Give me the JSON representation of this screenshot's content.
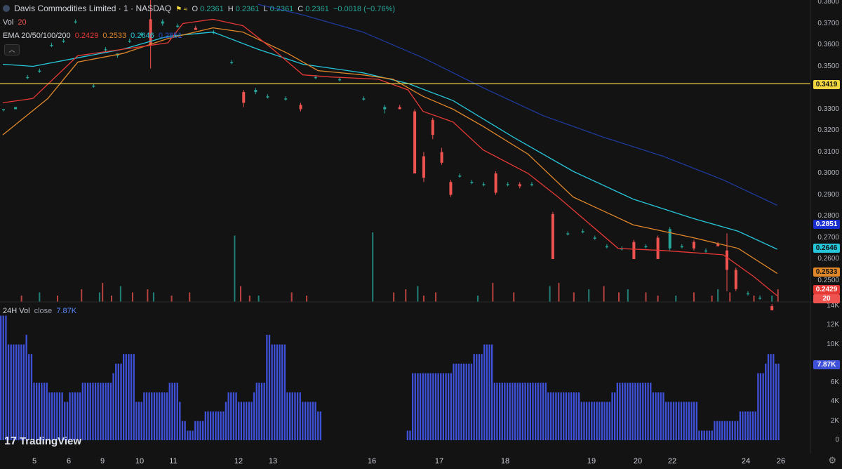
{
  "header": {
    "symbol": "Davis Commodities Limited · 1 · NASDAQ",
    "ohlc": {
      "o_label": "O",
      "o": "0.2361",
      "h_label": "H",
      "h": "0.2361",
      "l_label": "L",
      "l": "0.2361",
      "c_label": "C",
      "c": "0.2361",
      "change": "−0.0018 (−0.76%)"
    },
    "vol_label": "Vol",
    "vol_value": "20",
    "ema_label": "EMA 20/50/100/200",
    "ema_values": [
      "0.2429",
      "0.2533",
      "0.2646",
      "0.2851"
    ],
    "vol24_label": "24H Vol",
    "vol24_src": "close",
    "vol24_value": "7.87K"
  },
  "price_axis": {
    "ticks": [
      "0.3800",
      "0.3700",
      "0.3600",
      "0.3500",
      "0.3300",
      "0.3200",
      "0.3100",
      "0.3000",
      "0.2900",
      "0.2800",
      "0.2700",
      "0.2600",
      "0.2500"
    ],
    "tags": {
      "hline": "0.3419",
      "ema200": "0.2851",
      "ema100": "0.2646",
      "ema50": "0.2533",
      "ema20": "0.2429",
      "vol": "20"
    }
  },
  "vol_axis": {
    "ticks": [
      "14K",
      "12K",
      "10K",
      "8K",
      "6K",
      "4K",
      "2K",
      "0"
    ],
    "current": "7.87K"
  },
  "time_axis": [
    "5",
    "6",
    "9",
    "10",
    "11",
    "12",
    "13",
    "16",
    "17",
    "18",
    "19",
    "20",
    "22",
    "24",
    "26"
  ],
  "branding": "TradingView",
  "colors": {
    "up": "#26a69a",
    "down": "#ef5350",
    "ema20": "#e53935",
    "ema50": "#e0872a",
    "ema100": "#26c6da",
    "ema200": "#1e3a9c",
    "hline": "#f0d540",
    "vol24": "#3f51d8"
  },
  "chart_data": {
    "type": "candlestick",
    "ylim": [
      0.24,
      0.381
    ],
    "hline": 0.3419,
    "x_count": 260,
    "ema20": [
      [
        0,
        0.333
      ],
      [
        10,
        0.335
      ],
      [
        25,
        0.355
      ],
      [
        40,
        0.358
      ],
      [
        55,
        0.361
      ],
      [
        60,
        0.37
      ],
      [
        70,
        0.372
      ],
      [
        80,
        0.369
      ],
      [
        90,
        0.358
      ],
      [
        100,
        0.346
      ],
      [
        110,
        0.345
      ],
      [
        125,
        0.344
      ],
      [
        135,
        0.339
      ],
      [
        140,
        0.329
      ],
      [
        150,
        0.324
      ],
      [
        160,
        0.311
      ],
      [
        175,
        0.3
      ],
      [
        185,
        0.289
      ],
      [
        205,
        0.265
      ],
      [
        220,
        0.264
      ],
      [
        240,
        0.262
      ],
      [
        250,
        0.252
      ],
      [
        258,
        0.2429
      ]
    ],
    "ema50": [
      [
        0,
        0.318
      ],
      [
        15,
        0.335
      ],
      [
        25,
        0.352
      ],
      [
        40,
        0.356
      ],
      [
        55,
        0.363
      ],
      [
        70,
        0.368
      ],
      [
        80,
        0.366
      ],
      [
        95,
        0.356
      ],
      [
        105,
        0.348
      ],
      [
        120,
        0.346
      ],
      [
        130,
        0.344
      ],
      [
        140,
        0.336
      ],
      [
        150,
        0.33
      ],
      [
        160,
        0.322
      ],
      [
        175,
        0.309
      ],
      [
        190,
        0.289
      ],
      [
        210,
        0.276
      ],
      [
        230,
        0.27
      ],
      [
        245,
        0.265
      ],
      [
        258,
        0.2533
      ]
    ],
    "ema100": [
      [
        0,
        0.351
      ],
      [
        10,
        0.35
      ],
      [
        25,
        0.354
      ],
      [
        40,
        0.358
      ],
      [
        55,
        0.364
      ],
      [
        70,
        0.366
      ],
      [
        85,
        0.358
      ],
      [
        100,
        0.351
      ],
      [
        120,
        0.347
      ],
      [
        135,
        0.342
      ],
      [
        150,
        0.334
      ],
      [
        170,
        0.317
      ],
      [
        190,
        0.301
      ],
      [
        210,
        0.288
      ],
      [
        230,
        0.279
      ],
      [
        245,
        0.273
      ],
      [
        258,
        0.2646
      ]
    ],
    "ema200": [
      [
        85,
        0.379
      ],
      [
        100,
        0.374
      ],
      [
        120,
        0.366
      ],
      [
        140,
        0.354
      ],
      [
        160,
        0.34
      ],
      [
        180,
        0.327
      ],
      [
        200,
        0.317
      ],
      [
        220,
        0.308
      ],
      [
        240,
        0.297
      ],
      [
        258,
        0.2851
      ]
    ],
    "candles": [
      [
        0,
        0.33,
        0.33,
        0.329,
        0.33
      ],
      [
        4,
        0.33,
        0.331,
        0.33,
        0.331
      ],
      [
        8,
        0.345,
        0.346,
        0.344,
        0.345
      ],
      [
        12,
        0.348,
        0.349,
        0.347,
        0.348
      ],
      [
        16,
        0.36,
        0.361,
        0.359,
        0.36
      ],
      [
        20,
        0.362,
        0.363,
        0.361,
        0.362
      ],
      [
        24,
        0.371,
        0.372,
        0.37,
        0.371
      ],
      [
        30,
        0.341,
        0.342,
        0.34,
        0.341
      ],
      [
        34,
        0.358,
        0.359,
        0.357,
        0.358
      ],
      [
        38,
        0.355,
        0.356,
        0.354,
        0.356
      ],
      [
        42,
        0.362,
        0.363,
        0.361,
        0.362
      ],
      [
        46,
        0.365,
        0.366,
        0.364,
        0.365
      ],
      [
        49,
        0.372,
        0.382,
        0.349,
        0.36
      ],
      [
        53,
        0.37,
        0.372,
        0.369,
        0.371
      ],
      [
        58,
        0.369,
        0.37,
        0.368,
        0.369
      ],
      [
        64,
        0.368,
        0.369,
        0.367,
        0.367
      ],
      [
        70,
        0.366,
        0.367,
        0.365,
        0.366
      ],
      [
        76,
        0.352,
        0.353,
        0.351,
        0.352
      ],
      [
        80,
        0.338,
        0.339,
        0.331,
        0.333
      ],
      [
        84,
        0.338,
        0.34,
        0.337,
        0.339
      ],
      [
        88,
        0.336,
        0.337,
        0.335,
        0.336
      ],
      [
        94,
        0.335,
        0.336,
        0.334,
        0.335
      ],
      [
        99,
        0.332,
        0.333,
        0.329,
        0.33
      ],
      [
        104,
        0.345,
        0.346,
        0.344,
        0.345
      ],
      [
        112,
        0.344,
        0.345,
        0.343,
        0.344
      ],
      [
        120,
        0.335,
        0.336,
        0.334,
        0.335
      ],
      [
        127,
        0.33,
        0.332,
        0.328,
        0.331
      ],
      [
        132,
        0.331,
        0.332,
        0.33,
        0.33
      ],
      [
        137,
        0.329,
        0.33,
        0.3,
        0.3
      ],
      [
        140,
        0.308,
        0.31,
        0.296,
        0.298
      ],
      [
        143,
        0.325,
        0.326,
        0.316,
        0.318
      ],
      [
        146,
        0.31,
        0.312,
        0.304,
        0.305
      ],
      [
        149,
        0.296,
        0.297,
        0.289,
        0.29
      ],
      [
        152,
        0.299,
        0.3,
        0.298,
        0.299
      ],
      [
        156,
        0.296,
        0.297,
        0.295,
        0.296
      ],
      [
        160,
        0.295,
        0.296,
        0.294,
        0.295
      ],
      [
        164,
        0.3,
        0.301,
        0.29,
        0.291
      ],
      [
        168,
        0.295,
        0.296,
        0.294,
        0.295
      ],
      [
        172,
        0.295,
        0.296,
        0.293,
        0.294
      ],
      [
        176,
        0.295,
        0.296,
        0.294,
        0.295
      ],
      [
        183,
        0.281,
        0.282,
        0.26,
        0.26
      ],
      [
        188,
        0.272,
        0.273,
        0.271,
        0.272
      ],
      [
        193,
        0.273,
        0.274,
        0.272,
        0.273
      ],
      [
        197,
        0.27,
        0.271,
        0.269,
        0.27
      ],
      [
        201,
        0.266,
        0.267,
        0.265,
        0.266
      ],
      [
        206,
        0.265,
        0.266,
        0.264,
        0.265
      ],
      [
        210,
        0.268,
        0.269,
        0.26,
        0.26
      ],
      [
        214,
        0.266,
        0.267,
        0.265,
        0.266
      ],
      [
        218,
        0.27,
        0.271,
        0.26,
        0.26
      ],
      [
        222,
        0.265,
        0.275,
        0.264,
        0.274
      ],
      [
        226,
        0.266,
        0.267,
        0.265,
        0.266
      ],
      [
        230,
        0.268,
        0.269,
        0.264,
        0.265
      ],
      [
        234,
        0.264,
        0.265,
        0.263,
        0.264
      ],
      [
        238,
        0.267,
        0.268,
        0.266,
        0.266
      ],
      [
        241,
        0.264,
        0.272,
        0.245,
        0.255
      ],
      [
        244,
        0.255,
        0.256,
        0.245,
        0.246
      ],
      [
        248,
        0.244,
        0.245,
        0.243,
        0.244
      ],
      [
        252,
        0.242,
        0.243,
        0.241,
        0.242
      ],
      [
        256,
        0.238,
        0.239,
        0.236,
        0.2361
      ]
    ],
    "volume": [
      [
        6,
        2
      ],
      [
        12,
        3
      ],
      [
        18,
        2
      ],
      [
        26,
        4
      ],
      [
        32,
        3
      ],
      [
        33,
        6
      ],
      [
        36,
        2
      ],
      [
        39,
        5
      ],
      [
        43,
        3
      ],
      [
        48,
        4
      ],
      [
        50,
        3
      ],
      [
        56,
        2
      ],
      [
        62,
        3
      ],
      [
        77,
        21
      ],
      [
        79,
        5
      ],
      [
        82,
        2
      ],
      [
        85,
        2
      ],
      [
        96,
        3
      ],
      [
        101,
        2
      ],
      [
        123,
        22
      ],
      [
        130,
        3
      ],
      [
        134,
        4
      ],
      [
        138,
        5
      ],
      [
        140,
        2
      ],
      [
        144,
        3
      ],
      [
        158,
        2
      ],
      [
        163,
        6
      ],
      [
        170,
        3
      ],
      [
        182,
        5
      ],
      [
        185,
        6
      ],
      [
        190,
        3
      ],
      [
        195,
        4
      ],
      [
        200,
        5
      ],
      [
        205,
        3
      ],
      [
        208,
        4
      ],
      [
        214,
        3
      ],
      [
        218,
        2
      ],
      [
        224,
        2
      ],
      [
        230,
        3
      ],
      [
        236,
        2
      ],
      [
        238,
        4
      ],
      [
        242,
        3
      ],
      [
        250,
        2
      ],
      [
        256,
        2
      ],
      [
        258,
        4
      ]
    ],
    "vol24": [
      13,
      13,
      13,
      10,
      10,
      10,
      10,
      10,
      10,
      10,
      11,
      9,
      9,
      6,
      6,
      6,
      6,
      6,
      6,
      5,
      5,
      5,
      5,
      5,
      5,
      4,
      4,
      5,
      5,
      5,
      5,
      5,
      6,
      6,
      6,
      6,
      6,
      6,
      6,
      6,
      6,
      6,
      6,
      6,
      7,
      8,
      8,
      8,
      9,
      9,
      9,
      9,
      9,
      4,
      4,
      4,
      5,
      5,
      5,
      5,
      5,
      5,
      5,
      5,
      5,
      5,
      6,
      6,
      6,
      6,
      4,
      2,
      2,
      1,
      1,
      1,
      2,
      2,
      2,
      2,
      3,
      3,
      3,
      3,
      3,
      3,
      3,
      3,
      4,
      5,
      5,
      5,
      5,
      4,
      4,
      4,
      4,
      4,
      4,
      5,
      6,
      6,
      6,
      6,
      11,
      11,
      10,
      10,
      10,
      10,
      10,
      10,
      5,
      5,
      5,
      5,
      5,
      5,
      4,
      4,
      4,
      4,
      4,
      4,
      3,
      3,
      0,
      0,
      0,
      0,
      0,
      0,
      0,
      0,
      0,
      0,
      0,
      0,
      0,
      0,
      0,
      0,
      0,
      0,
      0,
      0,
      0,
      0,
      0,
      0,
      0,
      0,
      0,
      0,
      0,
      0,
      0,
      0,
      0,
      1,
      1,
      7,
      7,
      7,
      7,
      7,
      7,
      7,
      7,
      7,
      7,
      7,
      7,
      7,
      7,
      7,
      7,
      8,
      8,
      8,
      8,
      8,
      8,
      8,
      8,
      9,
      9,
      9,
      9,
      10,
      10,
      10,
      10,
      6,
      6,
      6,
      6,
      6,
      6,
      6,
      6,
      6,
      6,
      6,
      6,
      6,
      6,
      6,
      6,
      6,
      6,
      6,
      6,
      6,
      5,
      5,
      5,
      5,
      5,
      5,
      5,
      5,
      5,
      5,
      5,
      5,
      5,
      4,
      4,
      4,
      4,
      4,
      4,
      4,
      4,
      4,
      4,
      4,
      4,
      5,
      5,
      6,
      6,
      6,
      6,
      6,
      6,
      6,
      6,
      6,
      6,
      6,
      6,
      6,
      6,
      5,
      5,
      5,
      5,
      5,
      4,
      4,
      4,
      4,
      4,
      4,
      4,
      4,
      4,
      4,
      4,
      4,
      4,
      1,
      1,
      1,
      1,
      1,
      1,
      2,
      2,
      2,
      2,
      2,
      2,
      2,
      2,
      2,
      2,
      3,
      3,
      3,
      3,
      3,
      3,
      3,
      7,
      7,
      7,
      8,
      9,
      9,
      9,
      8,
      8
    ]
  }
}
